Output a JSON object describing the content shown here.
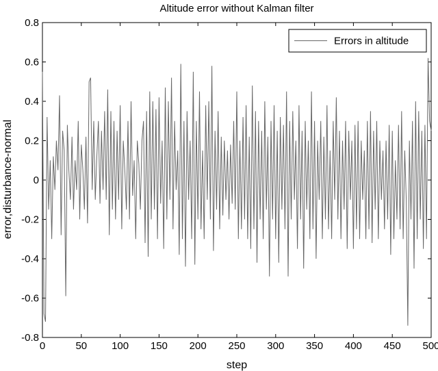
{
  "chart_data": {
    "type": "line",
    "title": "Altitude error without Kalman filter",
    "xlabel": "step",
    "ylabel": "error,disturbance-normal",
    "xlim": [
      0,
      500
    ],
    "ylim": [
      -0.8,
      0.8
    ],
    "xticks": [
      0,
      50,
      100,
      150,
      200,
      250,
      300,
      350,
      400,
      450,
      500
    ],
    "yticks": [
      -0.8,
      -0.6,
      -0.4,
      -0.2,
      0,
      0.2,
      0.4,
      0.6,
      0.8
    ],
    "grid": false,
    "legend_position": "top-right",
    "series": [
      {
        "name": "Errors in altitude",
        "color": "#666666",
        "points": [
          [
            0,
            0.55
          ],
          [
            2,
            -0.68
          ],
          [
            4,
            -0.72
          ],
          [
            6,
            0.32
          ],
          [
            8,
            -0.15
          ],
          [
            10,
            0.1
          ],
          [
            12,
            -0.3
          ],
          [
            14,
            0.12
          ],
          [
            16,
            -0.05
          ],
          [
            18,
            0.2
          ],
          [
            20,
            0.05
          ],
          [
            22,
            0.43
          ],
          [
            24,
            -0.28
          ],
          [
            26,
            0.25
          ],
          [
            28,
            0.15
          ],
          [
            30,
            -0.59
          ],
          [
            32,
            0.28
          ],
          [
            34,
            0.05
          ],
          [
            36,
            -0.1
          ],
          [
            38,
            0.22
          ],
          [
            40,
            -0.15
          ],
          [
            42,
            0.1
          ],
          [
            44,
            -0.05
          ],
          [
            46,
            0.3
          ],
          [
            48,
            -0.2
          ],
          [
            50,
            0.18
          ],
          [
            52,
            0.05
          ],
          [
            54,
            -0.15
          ],
          [
            56,
            0.22
          ],
          [
            58,
            -0.22
          ],
          [
            60,
            0.5
          ],
          [
            62,
            0.52
          ],
          [
            64,
            -0.05
          ],
          [
            66,
            0.3
          ],
          [
            68,
            -0.1
          ],
          [
            70,
            0.12
          ],
          [
            72,
            0.3
          ],
          [
            74,
            -0.12
          ],
          [
            76,
            0.25
          ],
          [
            78,
            -0.05
          ],
          [
            80,
            0.35
          ],
          [
            82,
            -0.1
          ],
          [
            84,
            0.46
          ],
          [
            86,
            -0.28
          ],
          [
            88,
            0.35
          ],
          [
            90,
            -0.15
          ],
          [
            92,
            0.3
          ],
          [
            94,
            -0.2
          ],
          [
            96,
            0.25
          ],
          [
            98,
            -0.1
          ],
          [
            100,
            0.38
          ],
          [
            102,
            -0.25
          ],
          [
            104,
            0.2
          ],
          [
            106,
            0.05
          ],
          [
            108,
            -0.15
          ],
          [
            110,
            0.3
          ],
          [
            112,
            -0.2
          ],
          [
            114,
            0.4
          ],
          [
            116,
            -0.08
          ],
          [
            118,
            0.1
          ],
          [
            120,
            -0.3
          ],
          [
            122,
            0.2
          ],
          [
            124,
            0.08
          ],
          [
            126,
            -0.15
          ],
          [
            128,
            0.2
          ],
          [
            130,
            0.3
          ],
          [
            132,
            -0.32
          ],
          [
            134,
            0.35
          ],
          [
            136,
            -0.39
          ],
          [
            138,
            0.45
          ],
          [
            140,
            -0.2
          ],
          [
            142,
            0.4
          ],
          [
            144,
            -0.15
          ],
          [
            146,
            0.36
          ],
          [
            148,
            -0.3
          ],
          [
            150,
            0.42
          ],
          [
            152,
            -0.12
          ],
          [
            154,
            0.2
          ],
          [
            156,
            -0.35
          ],
          [
            158,
            0.47
          ],
          [
            160,
            -0.2
          ],
          [
            162,
            0.4
          ],
          [
            164,
            -0.1
          ],
          [
            166,
            0.52
          ],
          [
            168,
            -0.25
          ],
          [
            170,
            0.3
          ],
          [
            172,
            -0.05
          ],
          [
            174,
            0.15
          ],
          [
            176,
            -0.38
          ],
          [
            178,
            0.59
          ],
          [
            180,
            -0.3
          ],
          [
            182,
            0.3
          ],
          [
            184,
            -0.44
          ],
          [
            186,
            0.35
          ],
          [
            188,
            -0.1
          ],
          [
            190,
            0.2
          ],
          [
            192,
            -0.3
          ],
          [
            194,
            0.55
          ],
          [
            196,
            -0.43
          ],
          [
            198,
            0.3
          ],
          [
            200,
            -0.2
          ],
          [
            202,
            0.45
          ],
          [
            204,
            -0.25
          ],
          [
            206,
            0.15
          ],
          [
            208,
            -0.3
          ],
          [
            210,
            0.38
          ],
          [
            212,
            -0.1
          ],
          [
            214,
            0.4
          ],
          [
            216,
            -0.2
          ],
          [
            218,
            0.58
          ],
          [
            220,
            -0.36
          ],
          [
            222,
            0.25
          ],
          [
            224,
            -0.15
          ],
          [
            226,
            0.35
          ],
          [
            228,
            -0.25
          ],
          [
            230,
            0.22
          ],
          [
            232,
            -0.18
          ],
          [
            234,
            0.2
          ],
          [
            236,
            -0.1
          ],
          [
            238,
            0.15
          ],
          [
            240,
            -0.2
          ],
          [
            242,
            0.18
          ],
          [
            244,
            -0.12
          ],
          [
            246,
            0.3
          ],
          [
            248,
            -0.15
          ],
          [
            250,
            0.45
          ],
          [
            252,
            -0.3
          ],
          [
            254,
            0.2
          ],
          [
            256,
            -0.25
          ],
          [
            258,
            0.32
          ],
          [
            260,
            -0.2
          ],
          [
            262,
            0.38
          ],
          [
            264,
            -0.3
          ],
          [
            266,
            0.22
          ],
          [
            268,
            -0.35
          ],
          [
            270,
            0.48
          ],
          [
            272,
            -0.25
          ],
          [
            274,
            0.35
          ],
          [
            276,
            -0.42
          ],
          [
            278,
            0.3
          ],
          [
            280,
            -0.2
          ],
          [
            282,
            0.25
          ],
          [
            284,
            -0.3
          ],
          [
            286,
            0.4
          ],
          [
            288,
            -0.15
          ],
          [
            290,
            0.22
          ],
          [
            292,
            -0.49
          ],
          [
            294,
            0.3
          ],
          [
            296,
            -0.2
          ],
          [
            298,
            0.38
          ],
          [
            300,
            -0.3
          ],
          [
            302,
            0.25
          ],
          [
            304,
            -0.42
          ],
          [
            306,
            0.32
          ],
          [
            308,
            -0.15
          ],
          [
            310,
            0.28
          ],
          [
            312,
            -0.25
          ],
          [
            314,
            0.45
          ],
          [
            316,
            -0.49
          ],
          [
            318,
            0.3
          ],
          [
            320,
            -0.2
          ],
          [
            322,
            0.35
          ],
          [
            324,
            -0.1
          ],
          [
            326,
            0.2
          ],
          [
            328,
            -0.35
          ],
          [
            330,
            0.38
          ],
          [
            332,
            -0.2
          ],
          [
            334,
            0.25
          ],
          [
            336,
            -0.45
          ],
          [
            338,
            0.3
          ],
          [
            340,
            -0.15
          ],
          [
            342,
            0.2
          ],
          [
            344,
            -0.3
          ],
          [
            346,
            0.45
          ],
          [
            348,
            -0.25
          ],
          [
            350,
            0.3
          ],
          [
            352,
            -0.4
          ],
          [
            354,
            0.2
          ],
          [
            356,
            -0.1
          ],
          [
            358,
            0.3
          ],
          [
            360,
            -0.3
          ],
          [
            362,
            0.22
          ],
          [
            364,
            -0.2
          ],
          [
            366,
            0.38
          ],
          [
            368,
            -0.25
          ],
          [
            370,
            0.15
          ],
          [
            372,
            -0.3
          ],
          [
            374,
            0.3
          ],
          [
            376,
            -0.1
          ],
          [
            378,
            0.42
          ],
          [
            380,
            -0.2
          ],
          [
            382,
            0.25
          ],
          [
            384,
            -0.3
          ],
          [
            386,
            0.2
          ],
          [
            388,
            -0.15
          ],
          [
            390,
            0.3
          ],
          [
            392,
            -0.35
          ],
          [
            394,
            0.25
          ],
          [
            396,
            -0.1
          ],
          [
            398,
            0.2
          ],
          [
            400,
            -0.35
          ],
          [
            402,
            0.28
          ],
          [
            404,
            -0.25
          ],
          [
            406,
            0.3
          ],
          [
            408,
            -0.3
          ],
          [
            410,
            0.2
          ],
          [
            412,
            -0.1
          ],
          [
            414,
            0.15
          ],
          [
            416,
            -0.3
          ],
          [
            418,
            0.3
          ],
          [
            420,
            -0.25
          ],
          [
            422,
            0.35
          ],
          [
            424,
            -0.32
          ],
          [
            426,
            0.25
          ],
          [
            428,
            -0.15
          ],
          [
            430,
            0.3
          ],
          [
            432,
            -0.3
          ],
          [
            434,
            0.2
          ],
          [
            436,
            -0.1
          ],
          [
            438,
            0.15
          ],
          [
            440,
            -0.25
          ],
          [
            442,
            0.2
          ],
          [
            444,
            -0.2
          ],
          [
            446,
            0.28
          ],
          [
            448,
            -0.38
          ],
          [
            450,
            0.25
          ],
          [
            452,
            -0.3
          ],
          [
            454,
            0.1
          ],
          [
            456,
            -0.2
          ],
          [
            458,
            0.28
          ],
          [
            460,
            -0.25
          ],
          [
            462,
            0.35
          ],
          [
            464,
            -0.3
          ],
          [
            466,
            0.15
          ],
          [
            468,
            -0.1
          ],
          [
            470,
            -0.74
          ],
          [
            472,
            0.2
          ],
          [
            474,
            -0.2
          ],
          [
            476,
            0.3
          ],
          [
            478,
            -0.45
          ],
          [
            480,
            0.4
          ],
          [
            482,
            -0.3
          ],
          [
            484,
            0.35
          ],
          [
            486,
            -0.2
          ],
          [
            488,
            0.25
          ],
          [
            490,
            -0.35
          ],
          [
            492,
            0.28
          ],
          [
            494,
            -0.3
          ],
          [
            496,
            0.62
          ],
          [
            498,
            0.3
          ],
          [
            500,
            0.25
          ]
        ]
      }
    ]
  }
}
